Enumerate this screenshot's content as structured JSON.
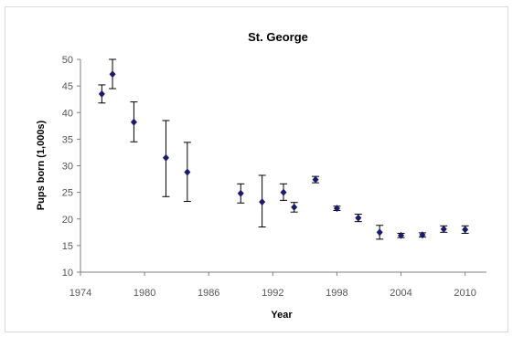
{
  "chart_data": {
    "type": "scatter",
    "title": "St. George",
    "xlabel": "Year",
    "ylabel": "Pups born (1,000s)",
    "xlim": [
      1974,
      2012
    ],
    "ylim": [
      10,
      50
    ],
    "xticks": [
      1974,
      1980,
      1986,
      1992,
      1998,
      2004,
      2010
    ],
    "yticks": [
      10,
      15,
      20,
      25,
      30,
      35,
      40,
      45,
      50
    ],
    "grid": false,
    "legend": "none",
    "marker_color": "#1a1a6e",
    "points": [
      {
        "x": 1976,
        "y": 43.5,
        "lo": 41.8,
        "hi": 45.2
      },
      {
        "x": 1977,
        "y": 47.2,
        "lo": 44.5,
        "hi": 50.0
      },
      {
        "x": 1979,
        "y": 38.2,
        "lo": 34.5,
        "hi": 42.0
      },
      {
        "x": 1982,
        "y": 31.5,
        "lo": 24.2,
        "hi": 38.5
      },
      {
        "x": 1984,
        "y": 28.8,
        "lo": 23.3,
        "hi": 34.4
      },
      {
        "x": 1989,
        "y": 24.8,
        "lo": 23.0,
        "hi": 26.6
      },
      {
        "x": 1991,
        "y": 23.2,
        "lo": 18.5,
        "hi": 28.2
      },
      {
        "x": 1993,
        "y": 25.0,
        "lo": 23.5,
        "hi": 26.6
      },
      {
        "x": 1994,
        "y": 22.2,
        "lo": 21.3,
        "hi": 23.1
      },
      {
        "x": 1996,
        "y": 27.4,
        "lo": 26.8,
        "hi": 28.0
      },
      {
        "x": 1998,
        "y": 22.0,
        "lo": 21.6,
        "hi": 22.4
      },
      {
        "x": 2000,
        "y": 20.2,
        "lo": 19.5,
        "hi": 20.9
      },
      {
        "x": 2002,
        "y": 17.5,
        "lo": 16.2,
        "hi": 18.8
      },
      {
        "x": 2004,
        "y": 16.9,
        "lo": 16.5,
        "hi": 17.3
      },
      {
        "x": 2006,
        "y": 17.0,
        "lo": 16.6,
        "hi": 17.4
      },
      {
        "x": 2008,
        "y": 18.1,
        "lo": 17.5,
        "hi": 18.7
      },
      {
        "x": 2010,
        "y": 18.0,
        "lo": 17.3,
        "hi": 18.7
      }
    ]
  }
}
